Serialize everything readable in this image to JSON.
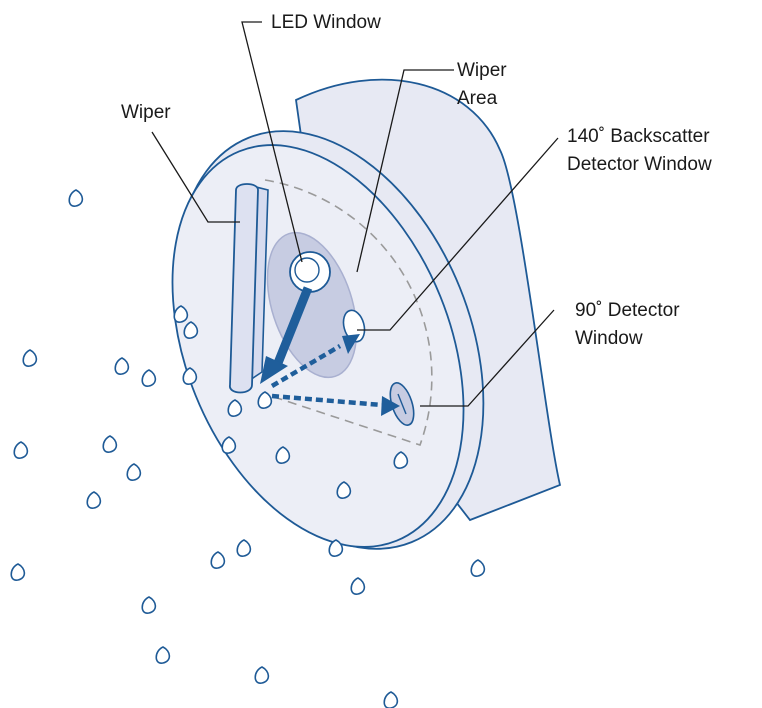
{
  "labels": {
    "led_window": "LED Window",
    "wiper_area_line1": "Wiper",
    "wiper_area_line2": "Area",
    "wiper": "Wiper",
    "backscatter_line1": "140˚ Backscatter",
    "backscatter_line2": "Detector Window",
    "detector90_line1": "90˚ Detector",
    "detector90_line2": "Window"
  },
  "colors": {
    "outline": "#1e5a96",
    "body_fill": "#e7e9f3",
    "face_fill": "#eceef6",
    "arrow": "#1f5e9b",
    "window_fill": "#c7cce2",
    "dashed": "#9a9a9a"
  }
}
